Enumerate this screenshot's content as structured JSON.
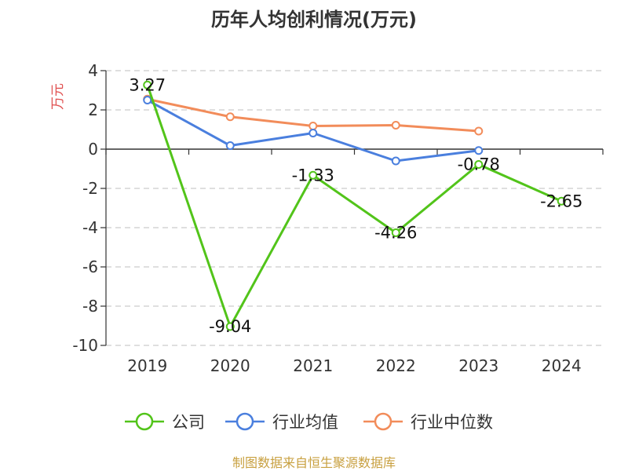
{
  "chart_data": {
    "type": "line",
    "title": "历年人均创利情况(万元)",
    "ylabel": "万元",
    "categories": [
      "2019",
      "2020",
      "2021",
      "2022",
      "2023",
      "2024"
    ],
    "ylim": [
      -10,
      4
    ],
    "yticks": [
      4,
      2,
      0,
      -2,
      -4,
      -6,
      -8,
      -10
    ],
    "grid": true,
    "legend_position": "bottom",
    "series": [
      {
        "name": "公司",
        "color": "#52c41a",
        "values": [
          3.27,
          -9.04,
          -1.33,
          -4.26,
          -0.78,
          -2.65
        ],
        "labels": [
          "3.27",
          "-9.04",
          "-1.33",
          "-4.26",
          "-0.78",
          "-2.65"
        ]
      },
      {
        "name": "行业均值",
        "color": "#4a7fde",
        "values": [
          2.5,
          0.18,
          0.82,
          -0.6,
          -0.07,
          null
        ]
      },
      {
        "name": "行业中位数",
        "color": "#f28c5a",
        "values": [
          2.55,
          1.65,
          1.18,
          1.22,
          0.92,
          null
        ]
      }
    ]
  },
  "colors": {
    "axis": "#333333",
    "grid": "#cccccc",
    "ylabel": "#e05050",
    "source": "#c8a040"
  },
  "source_text": "制图数据来自恒生聚源数据库"
}
